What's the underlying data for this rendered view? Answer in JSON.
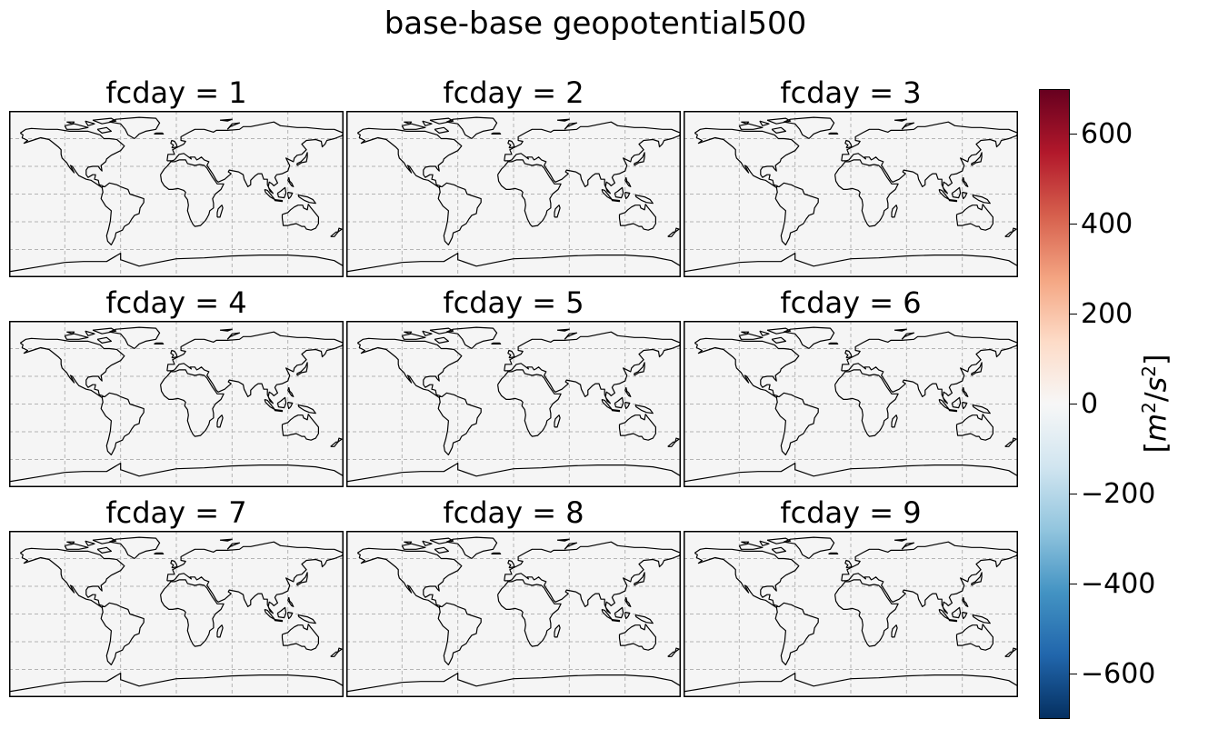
{
  "chart_data": {
    "type": "heatmap",
    "title": "base-base geopotential500",
    "panel_titles": [
      "fcday = 1",
      "fcday = 2",
      "fcday = 3",
      "fcday = 4",
      "fcday = 5",
      "fcday = 6",
      "fcday = 7",
      "fcday = 8",
      "fcday = 9"
    ],
    "panel_value": 0,
    "colorbar": {
      "label": "[m²/s²]",
      "colormap": "RdBu_r",
      "vmin": -700,
      "vmax": 700,
      "ticks": [
        600,
        400,
        200,
        0,
        -200,
        -400,
        -600
      ],
      "tick_labels": [
        "600",
        "400",
        "200",
        "0",
        "−200",
        "−400",
        "−600"
      ],
      "colors": [
        "#053061",
        "#2166ac",
        "#4393c3",
        "#92c5de",
        "#d1e5f0",
        "#f7f7f7",
        "#fddbc7",
        "#f4a582",
        "#d6604d",
        "#b2182b",
        "#67001f"
      ]
    },
    "map_fill_color": "#f5f5f5",
    "gridlines": true
  }
}
